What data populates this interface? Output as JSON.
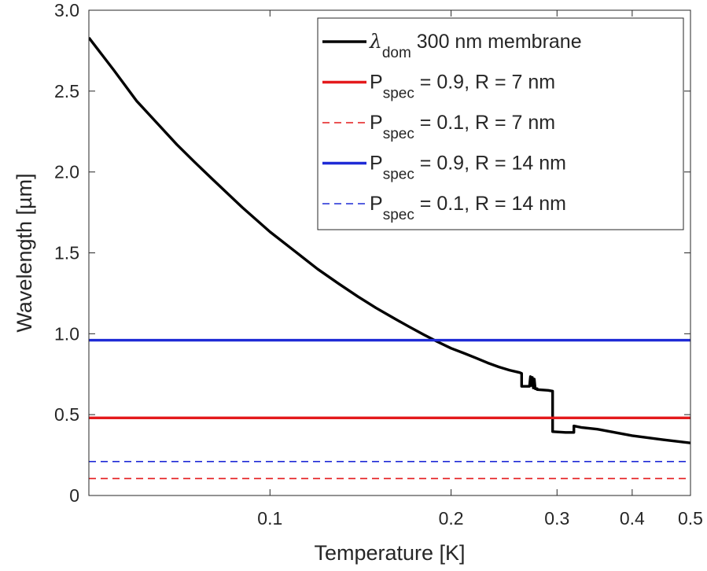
{
  "chart_data": {
    "type": "line",
    "xlabel": "Temperature [K]",
    "ylabel": "Wavelength [µm]",
    "xscale": "log",
    "xlim": [
      0.05,
      0.5
    ],
    "ylim": [
      0,
      3.0
    ],
    "xticks": [
      {
        "value": 0.1,
        "label": "0.1"
      },
      {
        "value": 0.2,
        "label": "0.2"
      },
      {
        "value": 0.3,
        "label": "0.3"
      },
      {
        "value": 0.4,
        "label": "0.4"
      },
      {
        "value": 0.5,
        "label": "0.5"
      }
    ],
    "yticks": [
      {
        "value": 0,
        "label": "0"
      },
      {
        "value": 0.5,
        "label": "0.5"
      },
      {
        "value": 1.0,
        "label": "1.0"
      },
      {
        "value": 1.5,
        "label": "1.5"
      },
      {
        "value": 2.0,
        "label": "2.0"
      },
      {
        "value": 2.5,
        "label": "2.5"
      },
      {
        "value": 3.0,
        "label": "3.0"
      }
    ],
    "grid": false,
    "legend_position": "top-right",
    "series": [
      {
        "name": "300 nm membrane",
        "legend_symbol": "λ",
        "legend_sub": "dom",
        "color": "#000000",
        "dash": "solid",
        "x": [
          0.05,
          0.055,
          0.06,
          0.065,
          0.07,
          0.075,
          0.08,
          0.09,
          0.1,
          0.11,
          0.12,
          0.13,
          0.14,
          0.15,
          0.16,
          0.17,
          0.18,
          0.19,
          0.2,
          0.21,
          0.22,
          0.23,
          0.24,
          0.25,
          0.26,
          0.262,
          0.262,
          0.27,
          0.271,
          0.272,
          0.273,
          0.274,
          0.275,
          0.276,
          0.278,
          0.278,
          0.29,
          0.295,
          0.295,
          0.31,
          0.32,
          0.32,
          0.33,
          0.35,
          0.4,
          0.45,
          0.5
        ],
        "y": [
          2.83,
          2.63,
          2.44,
          2.3,
          2.17,
          2.06,
          1.96,
          1.78,
          1.63,
          1.51,
          1.4,
          1.31,
          1.23,
          1.16,
          1.1,
          1.045,
          0.995,
          0.95,
          0.91,
          0.88,
          0.85,
          0.82,
          0.795,
          0.775,
          0.76,
          0.755,
          0.675,
          0.675,
          0.735,
          0.68,
          0.73,
          0.665,
          0.72,
          0.66,
          0.66,
          0.655,
          0.65,
          0.645,
          0.395,
          0.39,
          0.39,
          0.43,
          0.42,
          0.41,
          0.37,
          0.345,
          0.325
        ]
      },
      {
        "name": "= 0.9, R = 7 nm",
        "legend_symbol": "P",
        "legend_sub": "spec",
        "color": "#e41a1c",
        "dash": "solid",
        "x": [
          0.05,
          0.5
        ],
        "y": [
          0.48,
          0.48
        ]
      },
      {
        "name": "= 0.1, R = 7 nm",
        "legend_symbol": "P",
        "legend_sub": "spec",
        "color": "#e41a1c",
        "dash": "dashed",
        "x": [
          0.05,
          0.5
        ],
        "y": [
          0.105,
          0.105
        ]
      },
      {
        "name": "= 0.9, R = 14 nm",
        "legend_symbol": "P",
        "legend_sub": "spec",
        "color": "#1f2bd6",
        "dash": "solid",
        "x": [
          0.05,
          0.5
        ],
        "y": [
          0.96,
          0.96
        ]
      },
      {
        "name": "= 0.1, R = 14 nm",
        "legend_symbol": "P",
        "legend_sub": "spec",
        "color": "#1f2bd6",
        "dash": "dashed",
        "x": [
          0.05,
          0.5
        ],
        "y": [
          0.21,
          0.21
        ]
      }
    ]
  }
}
